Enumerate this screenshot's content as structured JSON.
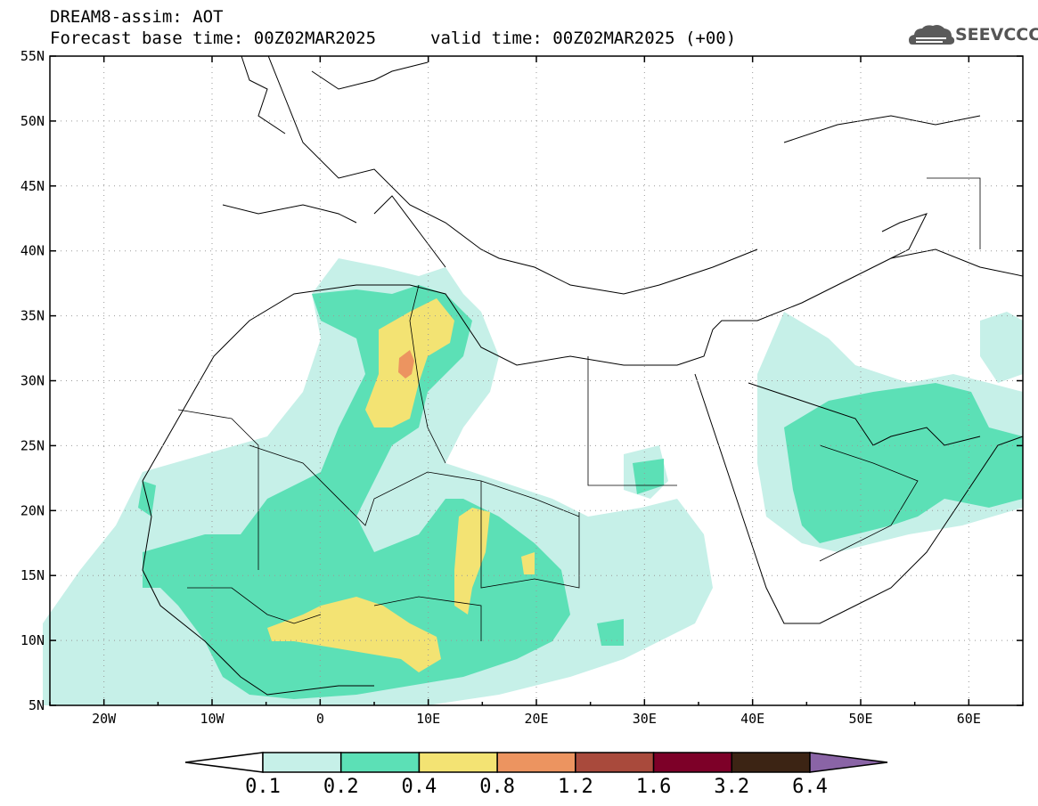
{
  "header": {
    "title": "DREAM8-assim: AOT",
    "base_time": "Forecast base time: 00Z02MAR2025",
    "valid_time": "valid time: 00Z02MAR2025 (+00)",
    "logo_text": "SEEVCCC",
    "logo_icon": "cloud-logo-icon"
  },
  "map": {
    "lon_range": [
      -25,
      65
    ],
    "lat_range": [
      5,
      55
    ],
    "lat_ticks": [
      "5N",
      "10N",
      "15N",
      "20N",
      "25N",
      "30N",
      "35N",
      "40N",
      "45N",
      "50N",
      "55N"
    ],
    "lon_ticks": [
      "20W",
      "10W",
      "0",
      "10E",
      "20E",
      "30E",
      "40E",
      "50E",
      "60E"
    ],
    "grid": "dotted"
  },
  "colorbar": {
    "labels": [
      "0.1",
      "0.2",
      "0.4",
      "0.8",
      "1.2",
      "1.6",
      "3.2",
      "6.4"
    ],
    "colors": [
      "#ffffff",
      "#c6f0e8",
      "#5ce0b6",
      "#f3e373",
      "#ec9460",
      "#a94a3c",
      "#7d0028",
      "#3c2414",
      "#8a64a6"
    ]
  },
  "colors": {
    "aot_0_1": "#c6f0e8",
    "aot_0_2": "#5ce0b6",
    "aot_0_4": "#f3e373",
    "aot_0_8": "#ec9460"
  }
}
